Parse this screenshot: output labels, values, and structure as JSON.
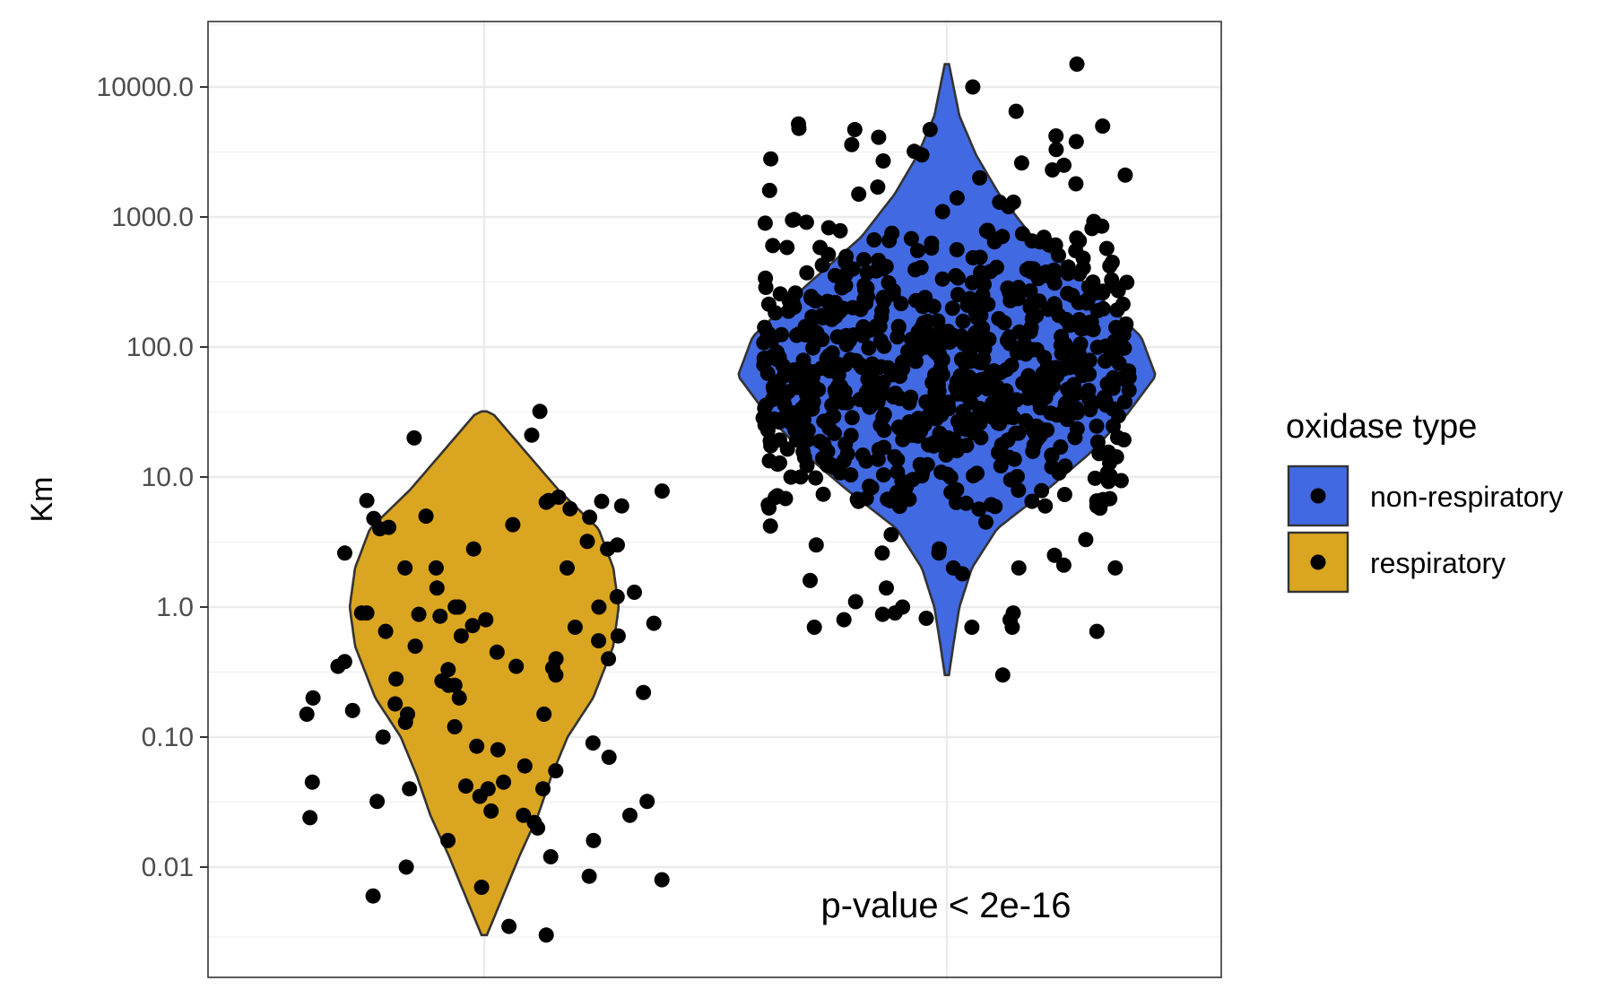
{
  "chart_data": {
    "type": "violin",
    "title": "",
    "xlabel": "",
    "ylabel": "Km",
    "y_scale": "log10",
    "ylim": [
      0.0015,
      40000
    ],
    "y_ticks": [
      {
        "value": 0.01,
        "label": "0.01"
      },
      {
        "value": 0.1,
        "label": "0.10"
      },
      {
        "value": 1,
        "label": "1.0"
      },
      {
        "value": 10,
        "label": "10.0"
      },
      {
        "value": 100,
        "label": "100.0"
      },
      {
        "value": 1000,
        "label": "1000.0"
      },
      {
        "value": 10000,
        "label": "10000.0"
      }
    ],
    "x_order": [
      "respiratory",
      "non-respiratory"
    ],
    "grid": true,
    "legend": {
      "title": "oxidase type",
      "position": "right",
      "entries": [
        {
          "label": "non-respiratory",
          "color": "#4169E1"
        },
        {
          "label": "respiratory",
          "color": "#DAA520"
        }
      ]
    },
    "annotation": "p-value < 2e-16",
    "series": [
      {
        "name": "respiratory",
        "color": "#DAA520",
        "violin_range": [
          0.003,
          32
        ],
        "violin_density": [
          [
            0.003,
            0.02
          ],
          [
            0.006,
            0.14
          ],
          [
            0.012,
            0.26
          ],
          [
            0.025,
            0.4
          ],
          [
            0.05,
            0.5
          ],
          [
            0.1,
            0.62
          ],
          [
            0.2,
            0.81
          ],
          [
            0.5,
            0.96
          ],
          [
            1.0,
            1.0
          ],
          [
            2.0,
            0.96
          ],
          [
            4.0,
            0.85
          ],
          [
            8.0,
            0.55
          ],
          [
            16.0,
            0.3
          ],
          [
            32.0,
            0.05
          ]
        ],
        "points": [
          32,
          20,
          21,
          7.8,
          6.6,
          6.4,
          6.6,
          6.0,
          7.0,
          6.5,
          5.7,
          5.0,
          4.9,
          4.8,
          4.3,
          4.1,
          4.0,
          3.2,
          3.0,
          2.8,
          2.6,
          2.8,
          2.0,
          2.0,
          2.0,
          1.4,
          1.3,
          1.2,
          1.0,
          1.0,
          1.0,
          0.9,
          0.9,
          0.88,
          0.85,
          0.8,
          0.75,
          0.72,
          0.7,
          0.65,
          0.6,
          0.6,
          0.55,
          0.5,
          0.45,
          0.4,
          0.4,
          0.38,
          0.35,
          0.35,
          0.34,
          0.33,
          0.3,
          0.28,
          0.27,
          0.25,
          0.25,
          0.22,
          0.2,
          0.2,
          0.18,
          0.16,
          0.15,
          0.15,
          0.15,
          0.13,
          0.12,
          0.1,
          0.09,
          0.085,
          0.08,
          0.07,
          0.06,
          0.055,
          0.045,
          0.045,
          0.042,
          0.04,
          0.04,
          0.04,
          0.035,
          0.032,
          0.032,
          0.027,
          0.025,
          0.025,
          0.024,
          0.022,
          0.02,
          0.016,
          0.016,
          0.012,
          0.01,
          0.0085,
          0.008,
          0.007,
          0.006,
          0.0035,
          0.003
        ]
      },
      {
        "name": "non-respiratory",
        "color": "#4169E1",
        "violin_range": [
          0.3,
          15000
        ],
        "violin_density": [
          [
            0.3,
            0.01
          ],
          [
            0.5,
            0.03
          ],
          [
            1.0,
            0.06
          ],
          [
            2.0,
            0.12
          ],
          [
            4.0,
            0.24
          ],
          [
            8.0,
            0.48
          ],
          [
            15.0,
            0.68
          ],
          [
            30.0,
            0.86
          ],
          [
            60.0,
            1.0
          ],
          [
            120.0,
            0.93
          ],
          [
            300.0,
            0.67
          ],
          [
            700.0,
            0.41
          ],
          [
            1500.0,
            0.25
          ],
          [
            3000.0,
            0.14
          ],
          [
            6000.0,
            0.06
          ],
          [
            15000.0,
            0.01
          ]
        ],
        "points": [
          15000,
          10000,
          6500,
          5200,
          5000,
          4800,
          4700,
          4700,
          4200,
          4100,
          3800,
          3600,
          3300,
          3200,
          3000,
          2800,
          2700,
          2600,
          2500,
          2300,
          2100,
          2000,
          1800,
          1700,
          1600,
          1500,
          1400,
          1300,
          1300,
          1200,
          1100,
          0.3,
          0.65,
          0.7,
          0.7,
          0.7,
          0.8,
          0.8,
          0.82,
          0.88,
          0.9,
          0.9,
          1.0,
          1.1,
          1.4,
          1.6,
          1.8,
          2.0,
          2.0,
          2.0,
          2.1,
          2.5,
          2.6,
          2.6,
          2.8,
          3.0,
          3.3,
          3.6,
          4.2,
          4.5
        ]
      }
    ]
  }
}
